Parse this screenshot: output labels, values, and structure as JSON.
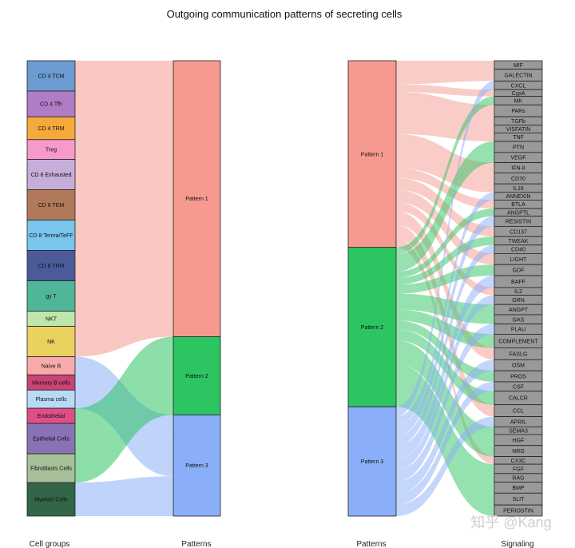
{
  "chart_data": {
    "type": "alluvial",
    "title": "Outgoing communication patterns of secreting cells",
    "panels": [
      {
        "name": "cell-groups-to-patterns",
        "left_axis_label": "Cell groups",
        "right_axis_label": "Patterns",
        "left_nodes": [
          {
            "label": "CD 4 TCM",
            "color": "#6b9bd1",
            "weight": 2.0,
            "pattern": 1
          },
          {
            "label": "CD 4 Tfh",
            "color": "#b07cc6",
            "weight": 1.7,
            "pattern": 1
          },
          {
            "label": "CD 4 TRM",
            "color": "#f6a93b",
            "weight": 1.5,
            "pattern": 1
          },
          {
            "label": "Treg",
            "color": "#f79acb",
            "weight": 1.3,
            "pattern": 1
          },
          {
            "label": "CD 8 Exhausted",
            "color": "#c5aed8",
            "weight": 2.0,
            "pattern": 1
          },
          {
            "label": "CD 8 TEM",
            "color": "#b07a5a",
            "weight": 2.0,
            "pattern": 1
          },
          {
            "label": "CD 8 Temra/TeFF",
            "color": "#78c5ee",
            "weight": 2.0,
            "pattern": 1
          },
          {
            "label": "CD 8 TRM",
            "color": "#4b5b99",
            "weight": 2.0,
            "pattern": 1
          },
          {
            "label": "gy T",
            "color": "#50b69a",
            "weight": 2.0,
            "pattern": 1
          },
          {
            "label": "NKT",
            "color": "#bfe6ac",
            "weight": 1.0,
            "pattern": 1
          },
          {
            "label": "NK",
            "color": "#ead160",
            "weight": 2.0,
            "pattern": 1
          },
          {
            "label": "Naive B",
            "color": "#f8aaaa",
            "weight": 1.2,
            "pattern": 3
          },
          {
            "label": "Memory B cells",
            "color": "#c94472",
            "weight": 1.0,
            "pattern": 3
          },
          {
            "label": "Plasma cells",
            "color": "#b8dbf3",
            "weight": 1.2,
            "pattern": 3
          },
          {
            "label": "Endothelial",
            "color": "#df4f86",
            "weight": 1.0,
            "pattern": 2
          },
          {
            "label": "Epithelial Cells",
            "color": "#8a73b5",
            "weight": 2.0,
            "pattern": 2
          },
          {
            "label": "Fibroblasts Cells",
            "color": "#a8c09a",
            "weight": 1.9,
            "pattern": 2
          },
          {
            "label": "Myeloid Cells",
            "color": "#336548",
            "weight": 2.2,
            "pattern": 3
          }
        ],
        "right_nodes": [
          {
            "label": "Pattern 1",
            "color": "#f69a90",
            "weight": 60
          },
          {
            "label": "Pattern 2",
            "color": "#2dc462",
            "weight": 17
          },
          {
            "label": "Pattern 3",
            "color": "#8aaef7",
            "weight": 22
          }
        ]
      },
      {
        "name": "patterns-to-signaling",
        "left_axis_label": "Patterns",
        "right_axis_label": "Signaling",
        "left_nodes": [
          {
            "label": "Pattern 1",
            "color": "#f69a90",
            "weight": 41
          },
          {
            "label": "Pattern 2",
            "color": "#2dc462",
            "weight": 35
          },
          {
            "label": "Pattern 3",
            "color": "#8aaef7",
            "weight": 24
          }
        ],
        "signaling_color": "#999999",
        "right_nodes": [
          {
            "label": "MIF",
            "weight": 1.0,
            "pattern": 1
          },
          {
            "label": "GALECTIN",
            "weight": 1.4,
            "pattern": 1
          },
          {
            "label": "CXCL",
            "weight": 1.0,
            "pattern": 3
          },
          {
            "label": "CypA",
            "weight": 0.8,
            "pattern": 1
          },
          {
            "label": "MK",
            "weight": 1.0,
            "pattern": 2
          },
          {
            "label": "PARs",
            "weight": 1.4,
            "pattern": 1
          },
          {
            "label": "TGFb",
            "weight": 1.0,
            "pattern": 1
          },
          {
            "label": "VISFATIN",
            "weight": 0.9,
            "pattern": 1
          },
          {
            "label": "TNF",
            "weight": 1.0,
            "pattern": 1
          },
          {
            "label": "PTN",
            "weight": 1.3,
            "pattern": 2
          },
          {
            "label": "VEGF",
            "weight": 1.2,
            "pattern": 2
          },
          {
            "label": "IFN-II",
            "weight": 1.2,
            "pattern": 1
          },
          {
            "label": "CD70",
            "weight": 1.3,
            "pattern": 1
          },
          {
            "label": "IL16",
            "weight": 1.0,
            "pattern": 1
          },
          {
            "label": "ANNEXIN",
            "weight": 0.9,
            "pattern": 3
          },
          {
            "label": "BTLA",
            "weight": 1.0,
            "pattern": 1
          },
          {
            "label": "ANGPTL",
            "weight": 0.9,
            "pattern": 2
          },
          {
            "label": "RESISTIN",
            "weight": 1.2,
            "pattern": 3
          },
          {
            "label": "CD137",
            "weight": 1.2,
            "pattern": 1
          },
          {
            "label": "TWEAK",
            "weight": 1.0,
            "pattern": 2
          },
          {
            "label": "CD40",
            "weight": 1.0,
            "pattern": 3
          },
          {
            "label": "LIGHT",
            "weight": 1.3,
            "pattern": 1
          },
          {
            "label": "GDF",
            "weight": 1.3,
            "pattern": 2
          },
          {
            "label": "BAFF",
            "weight": 1.4,
            "pattern": 3
          },
          {
            "label": "IL2",
            "weight": 0.9,
            "pattern": 1
          },
          {
            "label": "GRN",
            "weight": 1.1,
            "pattern": 3
          },
          {
            "label": "ANGPT",
            "weight": 1.2,
            "pattern": 2
          },
          {
            "label": "GAS",
            "weight": 1.1,
            "pattern": 2
          },
          {
            "label": "PLAU",
            "weight": 1.2,
            "pattern": 3
          },
          {
            "label": "COMPLEMENT",
            "weight": 1.6,
            "pattern": 2
          },
          {
            "label": "FASLG",
            "weight": 1.4,
            "pattern": 1
          },
          {
            "label": "OSM",
            "weight": 1.3,
            "pattern": 3
          },
          {
            "label": "PROS",
            "weight": 1.3,
            "pattern": 2
          },
          {
            "label": "CSF",
            "weight": 1.1,
            "pattern": 3
          },
          {
            "label": "CALCR",
            "weight": 1.6,
            "pattern": 2
          },
          {
            "label": "CCL",
            "weight": 1.4,
            "pattern": 1
          },
          {
            "label": "APRIL",
            "weight": 1.2,
            "pattern": 3
          },
          {
            "label": "SEMA3",
            "weight": 0.9,
            "pattern": 2
          },
          {
            "label": "HGF",
            "weight": 1.3,
            "pattern": 2
          },
          {
            "label": "NRG",
            "weight": 1.3,
            "pattern": 2
          },
          {
            "label": "CX3C",
            "weight": 0.9,
            "pattern": 1
          },
          {
            "label": "FGF",
            "weight": 1.1,
            "pattern": 2
          },
          {
            "label": "RAG",
            "weight": 1.0,
            "pattern": 2
          },
          {
            "label": "BMP",
            "weight": 1.3,
            "pattern": 2
          },
          {
            "label": "SLIT",
            "weight": 1.4,
            "pattern": 2
          },
          {
            "label": "PERIOSTIN",
            "weight": 1.3,
            "pattern": 2
          }
        ]
      }
    ]
  },
  "watermark": "知乎 @Kang"
}
